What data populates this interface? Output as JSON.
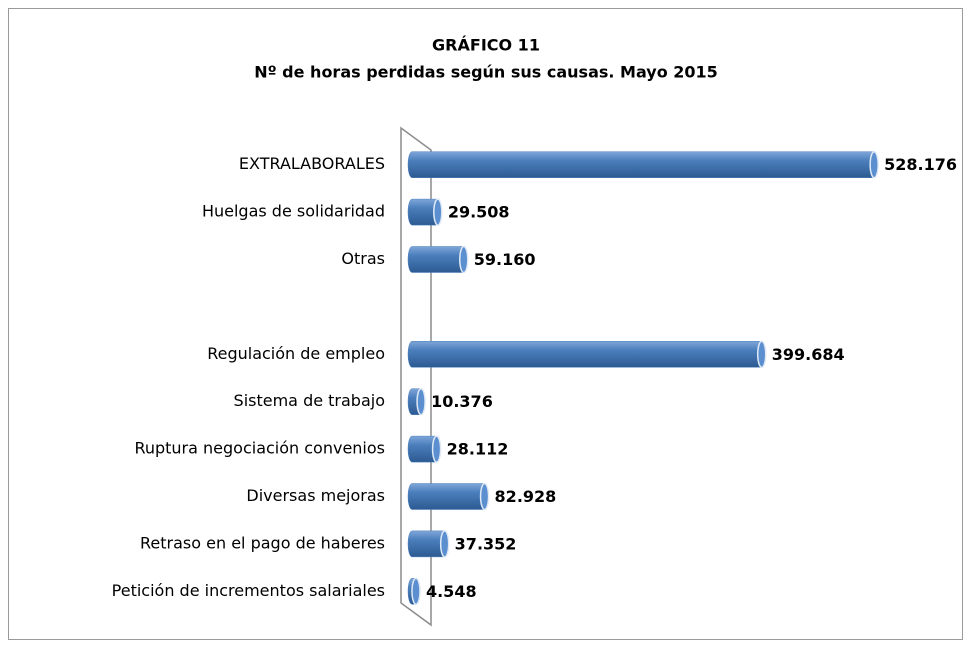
{
  "chart_data": {
    "type": "bar",
    "orientation": "horizontal",
    "title": "GRÁFICO 11",
    "subtitle": "Nº de horas perdidas según sus causas. Mayo 2015",
    "categories": [
      "EXTRALABORALES",
      "Huelgas de solidaridad",
      "Otras",
      null,
      "Regulación de empleo",
      "Sistema de trabajo",
      "Ruptura negociación convenios",
      "Diversas mejoras",
      "Retraso en el pago de haberes",
      "Petición de incrementos salariales"
    ],
    "values": [
      528176,
      29508,
      59160,
      null,
      399684,
      10376,
      28112,
      82928,
      37352,
      4548
    ],
    "value_labels": [
      "528.176",
      "29.508",
      "59.160",
      null,
      "399.684",
      "10.376",
      "28.112",
      "82.928",
      "37.352",
      "4.548"
    ],
    "color": "#4a7ebb",
    "xlim": [
      0,
      600000
    ]
  }
}
